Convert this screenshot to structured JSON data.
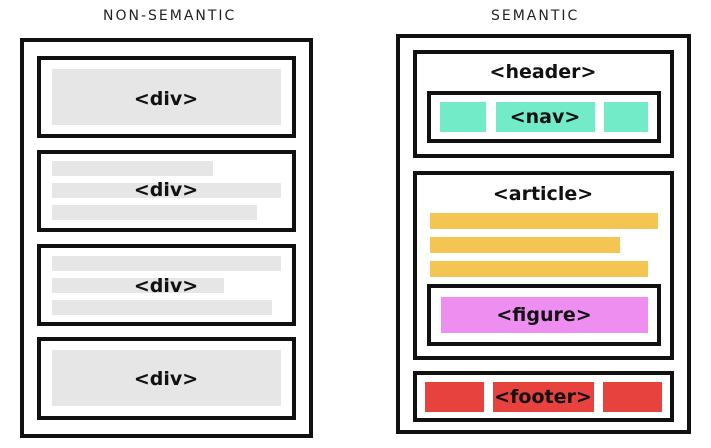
{
  "titles": {
    "left": "NON-SEMANTIC",
    "right": "SEMANTIC"
  },
  "non_semantic": {
    "blocks": [
      "<div>",
      "<div>",
      "<div>",
      "<div>"
    ]
  },
  "semantic": {
    "header": "<header>",
    "nav": "<nav>",
    "article": "<article>",
    "figure": "<figure>",
    "footer": "<footer>"
  },
  "colors": {
    "grey_placeholder": "#e6e6e6",
    "nav": "#72ebc8",
    "text_lines": "#f5c553",
    "figure": "#ee8ef1",
    "footer": "#e8423f",
    "border": "#111111"
  }
}
